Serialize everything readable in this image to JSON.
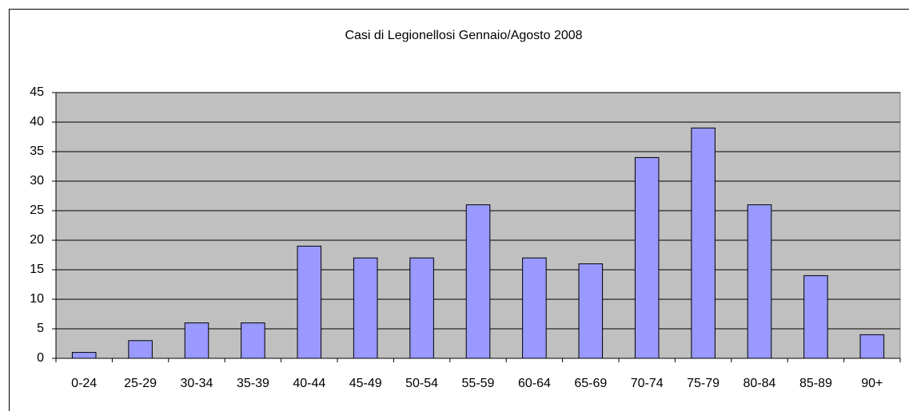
{
  "chart_data": {
    "type": "bar",
    "title": "Casi di Legionellosi Gennaio/Agosto 2008",
    "categories": [
      "0-24",
      "25-29",
      "30-34",
      "35-39",
      "40-44",
      "45-49",
      "50-54",
      "55-59",
      "60-64",
      "65-69",
      "70-74",
      "75-79",
      "80-84",
      "85-89",
      "90+"
    ],
    "values": [
      1,
      3,
      6,
      6,
      19,
      17,
      17,
      26,
      17,
      16,
      34,
      39,
      26,
      14,
      4
    ],
    "color": "#9999ff",
    "ylim": [
      0,
      45
    ],
    "yticks": [
      0,
      5,
      10,
      15,
      20,
      25,
      30,
      35,
      40,
      45
    ],
    "grid": true
  }
}
